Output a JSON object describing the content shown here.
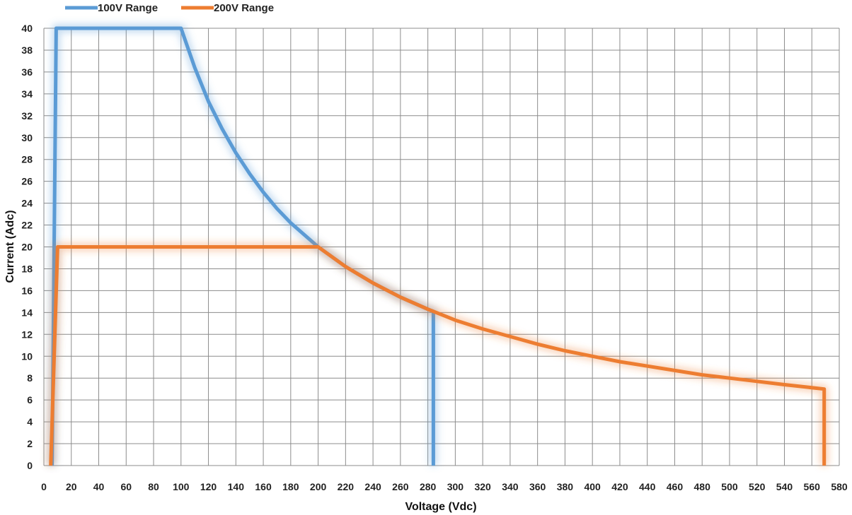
{
  "chart_data": {
    "type": "line",
    "xlabel": "Voltage (Vdc)",
    "ylabel": "Current (Adc)",
    "xlim": [
      0,
      580
    ],
    "ylim": [
      0,
      40
    ],
    "x_ticks": [
      0,
      20,
      40,
      60,
      80,
      100,
      120,
      140,
      160,
      180,
      200,
      220,
      240,
      260,
      280,
      300,
      320,
      340,
      360,
      380,
      400,
      420,
      440,
      460,
      480,
      500,
      520,
      540,
      560,
      580
    ],
    "y_ticks": [
      0,
      2,
      4,
      6,
      8,
      10,
      12,
      14,
      16,
      18,
      20,
      22,
      24,
      26,
      28,
      30,
      32,
      34,
      36,
      38,
      40
    ],
    "grid": true,
    "legend_position": "top-left",
    "series": [
      {
        "name": "100V Range",
        "color": "#5b9bd5",
        "points": [
          [
            6,
            0
          ],
          [
            9,
            40
          ],
          [
            100,
            40
          ],
          [
            110,
            36.4
          ],
          [
            120,
            33.3
          ],
          [
            130,
            30.8
          ],
          [
            140,
            28.6
          ],
          [
            150,
            26.7
          ],
          [
            160,
            25
          ],
          [
            170,
            23.5
          ],
          [
            180,
            22.2
          ],
          [
            190,
            21.1
          ],
          [
            200,
            20
          ],
          [
            220,
            18.2
          ],
          [
            240,
            16.7
          ],
          [
            260,
            15.4
          ],
          [
            280,
            14.3
          ],
          [
            284,
            14.1
          ],
          [
            284,
            0
          ]
        ]
      },
      {
        "name": "200V Range",
        "color": "#ed7d31",
        "points": [
          [
            5,
            0
          ],
          [
            10,
            20
          ],
          [
            200,
            20
          ],
          [
            220,
            18.2
          ],
          [
            240,
            16.7
          ],
          [
            260,
            15.4
          ],
          [
            280,
            14.3
          ],
          [
            300,
            13.3
          ],
          [
            320,
            12.5
          ],
          [
            340,
            11.8
          ],
          [
            360,
            11.1
          ],
          [
            380,
            10.5
          ],
          [
            400,
            10
          ],
          [
            420,
            9.5
          ],
          [
            440,
            9.1
          ],
          [
            460,
            8.7
          ],
          [
            480,
            8.3
          ],
          [
            500,
            8
          ],
          [
            520,
            7.7
          ],
          [
            540,
            7.4
          ],
          [
            569,
            7
          ],
          [
            569,
            0
          ]
        ]
      }
    ]
  }
}
